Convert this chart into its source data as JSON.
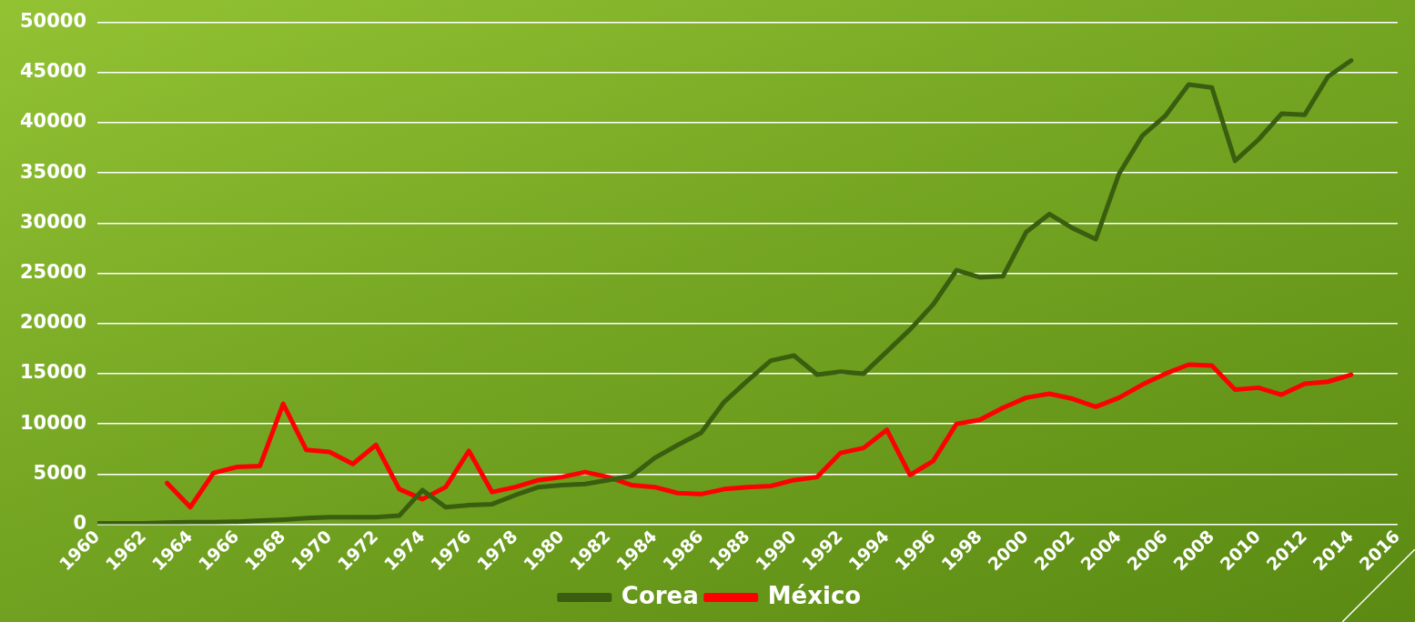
{
  "chart_data": {
    "type": "line",
    "x": [
      1960,
      1961,
      1962,
      1963,
      1964,
      1965,
      1966,
      1967,
      1968,
      1969,
      1970,
      1971,
      1972,
      1973,
      1974,
      1975,
      1976,
      1977,
      1978,
      1979,
      1980,
      1981,
      1982,
      1983,
      1984,
      1985,
      1986,
      1987,
      1988,
      1989,
      1990,
      1991,
      1992,
      1993,
      1994,
      1995,
      1996,
      1997,
      1998,
      1999,
      2000,
      2001,
      2002,
      2003,
      2004,
      2005,
      2006,
      2007,
      2008,
      2009,
      2010,
      2011,
      2012,
      2013,
      2014
    ],
    "series": [
      {
        "name": "Corea",
        "color": "#3a5e0f",
        "values": [
          100,
          100,
          100,
          150,
          200,
          200,
          250,
          350,
          450,
          600,
          700,
          700,
          700,
          850,
          3400,
          1700,
          1900,
          2000,
          2900,
          3700,
          3900,
          4000,
          4400,
          4800,
          6600,
          7900,
          9100,
          12200,
          14300,
          16300,
          16800,
          14900,
          15200,
          15000,
          17200,
          19400,
          21900,
          25300,
          24600,
          24700,
          29100,
          30900,
          29500,
          28400,
          34900,
          38700,
          40700,
          43800,
          43500,
          36200,
          38300,
          40900,
          40800,
          44600,
          46200
        ]
      },
      {
        "name": "México",
        "color": "#ff0000",
        "values": [
          null,
          null,
          null,
          4100,
          1700,
          5100,
          5700,
          5800,
          12000,
          7400,
          7200,
          6000,
          7900,
          3500,
          2500,
          3700,
          7300,
          3200,
          3700,
          4400,
          4700,
          5200,
          4700,
          3900,
          3700,
          3100,
          3000,
          3500,
          3700,
          3800,
          4400,
          4700,
          7100,
          7600,
          9400,
          4900,
          6300,
          10000,
          10400,
          11600,
          12600,
          13000,
          12500,
          11700,
          12600,
          13900,
          15000,
          15900,
          15800,
          13400,
          13600,
          12900,
          14000,
          14200,
          14900
        ]
      }
    ],
    "xlim": [
      1960,
      2016
    ],
    "xticks": [
      1960,
      1962,
      1964,
      1966,
      1968,
      1970,
      1972,
      1974,
      1976,
      1978,
      1980,
      1982,
      1984,
      1986,
      1988,
      1990,
      1992,
      1994,
      1996,
      1998,
      2000,
      2002,
      2004,
      2006,
      2008,
      2010,
      2012,
      2014,
      2016
    ],
    "ylim": [
      0,
      50000
    ],
    "yticks": [
      0,
      5000,
      10000,
      15000,
      20000,
      25000,
      30000,
      35000,
      40000,
      45000,
      50000
    ],
    "grid": "y",
    "legend": "bottom",
    "marker": "none",
    "line_style": "solid"
  }
}
